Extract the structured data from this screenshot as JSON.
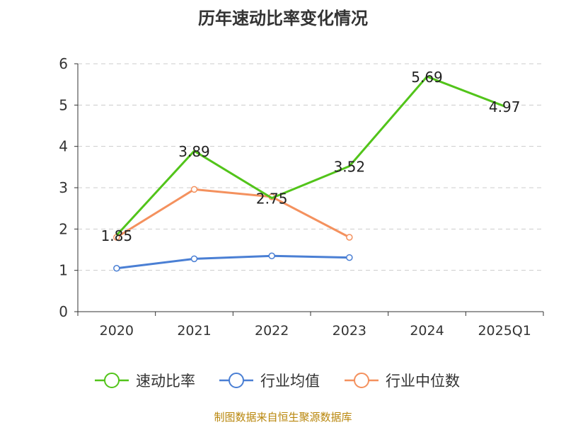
{
  "source_note": "制图数据来自恒生聚源数据库",
  "chart_data": {
    "type": "line",
    "title": "历年速动比率变化情况",
    "xlabel": "",
    "ylabel": "",
    "categories": [
      "2020",
      "2021",
      "2022",
      "2023",
      "2024",
      "2025Q1"
    ],
    "ylim": [
      0,
      6
    ],
    "yticks": [
      0,
      1,
      2,
      3,
      4,
      5,
      6
    ],
    "grid": true,
    "legend_position": "bottom",
    "series": [
      {
        "name": "速动比率",
        "color": "#52c41a",
        "values": [
          1.85,
          3.89,
          2.75,
          3.52,
          5.69,
          4.97
        ],
        "show_labels": true,
        "labels": [
          "1.85",
          "3.89",
          "2.75",
          "3.52",
          "5.69",
          "4.97"
        ]
      },
      {
        "name": "行业均值",
        "color": "#4a7fd4",
        "values": [
          1.05,
          1.28,
          1.35,
          1.31,
          null,
          null
        ],
        "show_labels": false
      },
      {
        "name": "行业中位数",
        "color": "#f4915e",
        "values": [
          1.8,
          2.96,
          2.78,
          1.8,
          null,
          null
        ],
        "show_labels": false
      }
    ]
  }
}
